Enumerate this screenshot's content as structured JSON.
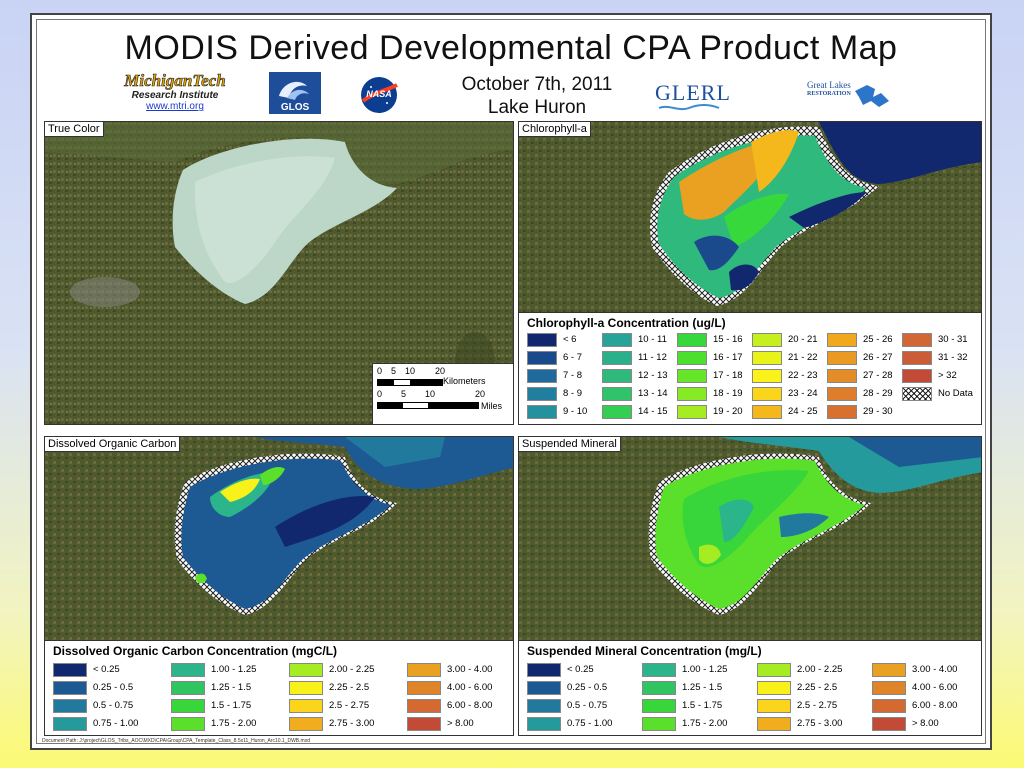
{
  "title": "MODIS Derived Developmental CPA Product Map",
  "date": "October 7th, 2011",
  "lake": "Lake Huron",
  "logos": {
    "mtri_name": "MichiganTech",
    "mtri_sub": "Research Institute",
    "mtri_url": "www.mtri.org",
    "glos": "GLOS",
    "nasa": "NASA",
    "glerl": "GLERL",
    "glri_line1": "Great Lakes",
    "glri_line2": "RESTORATION"
  },
  "panels": {
    "true_color": "True Color",
    "chlorophyll": "Chlorophyll-a",
    "doc": "Dissolved Organic Carbon",
    "suspended": "Suspended Mineral"
  },
  "scalebar": {
    "km_ticks": [
      "0",
      "5",
      "10",
      "20"
    ],
    "km_unit": "Kilometers",
    "mi_ticks": [
      "0",
      "5",
      "10",
      "20"
    ],
    "mi_unit": "Miles"
  },
  "chl_legend": {
    "title": "Chlorophyll-a Concentration (ug/L)",
    "items": [
      {
        "label": "< 6",
        "color": "#12286e"
      },
      {
        "label": "6 - 7",
        "color": "#1b4a8c"
      },
      {
        "label": "7 - 8",
        "color": "#1f6a9a"
      },
      {
        "label": "8 - 9",
        "color": "#227e9e"
      },
      {
        "label": "9 - 10",
        "color": "#23919e"
      },
      {
        "label": "10 - 11",
        "color": "#27a399"
      },
      {
        "label": "11 - 12",
        "color": "#2bb08c"
      },
      {
        "label": "12 - 13",
        "color": "#2fb97c"
      },
      {
        "label": "13 - 14",
        "color": "#2fc46a"
      },
      {
        "label": "14 - 15",
        "color": "#34cf52"
      },
      {
        "label": "15 - 16",
        "color": "#36d83c"
      },
      {
        "label": "16 - 17",
        "color": "#4cdf2e"
      },
      {
        "label": "17 - 18",
        "color": "#66e628"
      },
      {
        "label": "18 - 19",
        "color": "#86ea24"
      },
      {
        "label": "19 - 20",
        "color": "#a6ec22"
      },
      {
        "label": "20 - 21",
        "color": "#c6ef1e"
      },
      {
        "label": "21 - 22",
        "color": "#e8f31a"
      },
      {
        "label": "22 - 23",
        "color": "#fbf21a"
      },
      {
        "label": "23 - 24",
        "color": "#fbd41c"
      },
      {
        "label": "24 - 25",
        "color": "#f5b81c"
      },
      {
        "label": "25 - 26",
        "color": "#f0a81e"
      },
      {
        "label": "26 - 27",
        "color": "#ea9a22"
      },
      {
        "label": "27 - 28",
        "color": "#e48c28"
      },
      {
        "label": "28 - 29",
        "color": "#de7e2c"
      },
      {
        "label": "29 - 30",
        "color": "#d87030"
      },
      {
        "label": "30 - 31",
        "color": "#d26634"
      },
      {
        "label": "31 - 32",
        "color": "#cc5c36"
      },
      {
        "label": "> 32",
        "color": "#c24a36"
      },
      {
        "label": "No Data",
        "color": "hatch"
      }
    ]
  },
  "doc_legend": {
    "title": "Dissolved Organic Carbon Concentration (mgC/L)",
    "items": [
      {
        "label": "< 0.25",
        "color": "#12286e"
      },
      {
        "label": "0.25 - 0.5",
        "color": "#1d5a94"
      },
      {
        "label": "0.5 - 0.75",
        "color": "#217a9e"
      },
      {
        "label": "0.75 - 1.00",
        "color": "#249a9c"
      },
      {
        "label": "1.00 - 1.25",
        "color": "#2cb48a"
      },
      {
        "label": "1.25 - 1.5",
        "color": "#30c560"
      },
      {
        "label": "1.5 - 1.75",
        "color": "#38d63a"
      },
      {
        "label": "1.75 - 2.00",
        "color": "#5ae02a"
      },
      {
        "label": "2.00 - 2.25",
        "color": "#a6ec22"
      },
      {
        "label": "2.25 - 2.5",
        "color": "#f8f21a"
      },
      {
        "label": "2.5 - 2.75",
        "color": "#fbd41c"
      },
      {
        "label": "2.75 - 3.00",
        "color": "#f2ad1e"
      },
      {
        "label": "3.00 - 4.00",
        "color": "#eaa020"
      },
      {
        "label": "4.00 - 6.00",
        "color": "#e0842a"
      },
      {
        "label": "6.00 - 8.00",
        "color": "#d46a32"
      },
      {
        "label": "> 8.00",
        "color": "#c24a36"
      }
    ]
  },
  "sm_legend": {
    "title": "Suspended Mineral Concentration (mg/L)",
    "items": [
      {
        "label": "< 0.25",
        "color": "#12286e"
      },
      {
        "label": "0.25 - 0.5",
        "color": "#1d5a94"
      },
      {
        "label": "0.5 - 0.75",
        "color": "#217a9e"
      },
      {
        "label": "0.75 - 1.00",
        "color": "#249a9c"
      },
      {
        "label": "1.00 - 1.25",
        "color": "#2cb48a"
      },
      {
        "label": "1.25 - 1.5",
        "color": "#30c560"
      },
      {
        "label": "1.5 - 1.75",
        "color": "#38d63a"
      },
      {
        "label": "1.75 - 2.00",
        "color": "#5ae02a"
      },
      {
        "label": "2.00 - 2.25",
        "color": "#a6ec22"
      },
      {
        "label": "2.25 - 2.5",
        "color": "#f8f21a"
      },
      {
        "label": "2.5 - 2.75",
        "color": "#fbd41c"
      },
      {
        "label": "2.75 - 3.00",
        "color": "#f2ad1e"
      },
      {
        "label": "3.00 - 4.00",
        "color": "#eaa020"
      },
      {
        "label": "4.00 - 6.00",
        "color": "#e0842a"
      },
      {
        "label": "6.00 - 8.00",
        "color": "#d46a32"
      },
      {
        "label": "> 8.00",
        "color": "#c24a36"
      }
    ]
  },
  "doc_path": "Document Path: J:\\project\\GLOS_Tribs_AOC\\MXD\\CPA\\Group\\CPA_Template_Class_8.5x11_Huron_Arc10.1_DWB.mxd"
}
